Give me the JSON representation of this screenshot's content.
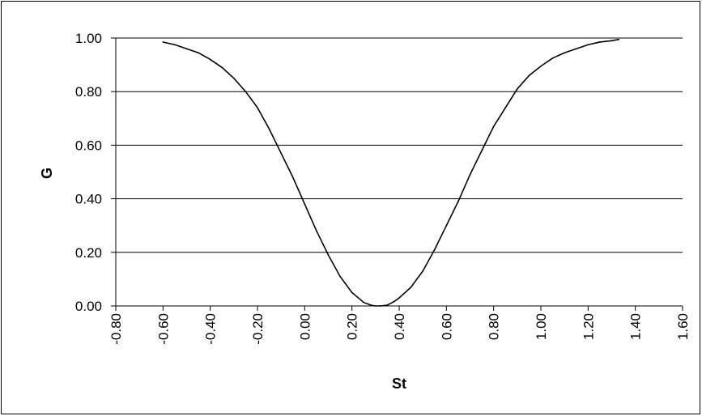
{
  "chart_data": {
    "type": "line",
    "title": "",
    "xlabel": "St",
    "ylabel": "G",
    "xlim": [
      -0.8,
      1.6
    ],
    "ylim": [
      0.0,
      1.0
    ],
    "x_ticks": [
      "-0.80",
      "-0.60",
      "-0.40",
      "-0.20",
      "0.00",
      "0.20",
      "0.40",
      "0.60",
      "0.80",
      "1.00",
      "1.20",
      "1.40",
      "1.60"
    ],
    "y_ticks": [
      "0.00",
      "0.20",
      "0.40",
      "0.60",
      "0.80",
      "1.00"
    ],
    "grid": "horizontal",
    "legend": "none",
    "colors": {
      "line": "#000000",
      "grid": "#000000",
      "background": "#ffffff"
    },
    "series": [
      {
        "x": [
          -0.6,
          -0.55,
          -0.5,
          -0.45,
          -0.4,
          -0.35,
          -0.3,
          -0.25,
          -0.2,
          -0.15,
          -0.1,
          -0.05,
          0.0,
          0.05,
          0.1,
          0.15,
          0.2,
          0.25,
          0.28,
          0.3,
          0.32,
          0.35,
          0.38,
          0.4,
          0.45,
          0.5,
          0.55,
          0.6,
          0.65,
          0.7,
          0.75,
          0.8,
          0.85,
          0.9,
          0.95,
          1.0,
          1.05,
          1.1,
          1.15,
          1.2,
          1.25,
          1.3,
          1.33
        ],
        "y": [
          0.985,
          0.975,
          0.96,
          0.945,
          0.92,
          0.89,
          0.85,
          0.8,
          0.74,
          0.66,
          0.57,
          0.48,
          0.38,
          0.28,
          0.19,
          0.11,
          0.05,
          0.013,
          0.003,
          0.0,
          0.0,
          0.003,
          0.017,
          0.03,
          0.07,
          0.13,
          0.21,
          0.3,
          0.39,
          0.49,
          0.58,
          0.67,
          0.74,
          0.81,
          0.86,
          0.895,
          0.925,
          0.945,
          0.96,
          0.975,
          0.985,
          0.99,
          0.995
        ]
      }
    ]
  }
}
